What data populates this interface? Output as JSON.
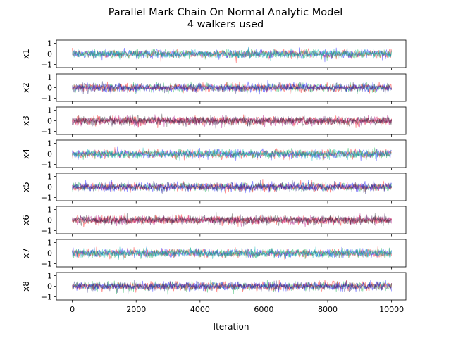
{
  "title_line1": "Parallel Mark Chain On Normal Analytic Model",
  "title_line2": "4 walkers used",
  "xlabel": "Iteration",
  "xlim": [
    -500,
    10450
  ],
  "xticks": [
    0,
    2000,
    4000,
    6000,
    8000,
    10000
  ],
  "xtick_labels": [
    "0",
    "2000",
    "4000",
    "6000",
    "8000",
    "10000"
  ],
  "chart_data": [
    {
      "type": "line",
      "ylabel": "x1",
      "ylim": [
        -1.3,
        1.3
      ],
      "yticks": [
        1,
        0,
        -1
      ],
      "ytick_labels": [
        "1",
        "0",
        "−1"
      ],
      "x_range": [
        0,
        10000
      ],
      "sigma": 0.2,
      "series_colors": [
        "#ff0000",
        "#0000ff",
        "#00aa44",
        "#00b3b3"
      ]
    },
    {
      "type": "line",
      "ylabel": "x2",
      "ylim": [
        -1.3,
        1.3
      ],
      "yticks": [
        1,
        0,
        -1
      ],
      "ytick_labels": [
        "1",
        "0",
        "−1"
      ],
      "x_range": [
        0,
        10000
      ],
      "sigma": 0.2,
      "series_colors": [
        "#00aa44",
        "#ff0000",
        "#0000ff",
        "#1a1a6e"
      ]
    },
    {
      "type": "line",
      "ylabel": "x3",
      "ylim": [
        -1.3,
        1.3
      ],
      "yticks": [
        1,
        0,
        -1
      ],
      "ytick_labels": [
        "1",
        "0",
        "−1"
      ],
      "x_range": [
        0,
        10000
      ],
      "sigma": 0.2,
      "series_colors": [
        "#ff0000",
        "#b3007a",
        "#330044",
        "#333333"
      ]
    },
    {
      "type": "line",
      "ylabel": "x4",
      "ylim": [
        -1.3,
        1.3
      ],
      "yticks": [
        1,
        0,
        -1
      ],
      "ytick_labels": [
        "1",
        "0",
        "−1"
      ],
      "x_range": [
        0,
        10000
      ],
      "sigma": 0.2,
      "series_colors": [
        "#ff0000",
        "#0000ff",
        "#00aa44",
        "#00b3b3"
      ]
    },
    {
      "type": "line",
      "ylabel": "x5",
      "ylim": [
        -1.3,
        1.3
      ],
      "yticks": [
        1,
        0,
        -1
      ],
      "ytick_labels": [
        "1",
        "0",
        "−1"
      ],
      "x_range": [
        0,
        10000
      ],
      "sigma": 0.2,
      "series_colors": [
        "#00aa44",
        "#ff0000",
        "#0000ff",
        "#1a1a6e"
      ]
    },
    {
      "type": "line",
      "ylabel": "x6",
      "ylim": [
        -1.3,
        1.3
      ],
      "yticks": [
        1,
        0,
        -1
      ],
      "ytick_labels": [
        "1",
        "0",
        "−1"
      ],
      "x_range": [
        0,
        10000
      ],
      "sigma": 0.2,
      "series_colors": [
        "#ff0000",
        "#b3007a",
        "#330044",
        "#333333"
      ]
    },
    {
      "type": "line",
      "ylabel": "x7",
      "ylim": [
        -1.3,
        1.3
      ],
      "yticks": [
        1,
        0,
        -1
      ],
      "ytick_labels": [
        "1",
        "0",
        "−1"
      ],
      "x_range": [
        0,
        10000
      ],
      "sigma": 0.2,
      "series_colors": [
        "#ff0000",
        "#0000ff",
        "#00aa44",
        "#00b3b3"
      ]
    },
    {
      "type": "line",
      "ylabel": "x8",
      "ylim": [
        -1.3,
        1.3
      ],
      "yticks": [
        1,
        0,
        -1
      ],
      "ytick_labels": [
        "1",
        "0",
        "−1"
      ],
      "x_range": [
        0,
        10000
      ],
      "sigma": 0.2,
      "series_colors": [
        "#00aa44",
        "#ff0000",
        "#0000ff",
        "#1a1a6e"
      ]
    }
  ]
}
